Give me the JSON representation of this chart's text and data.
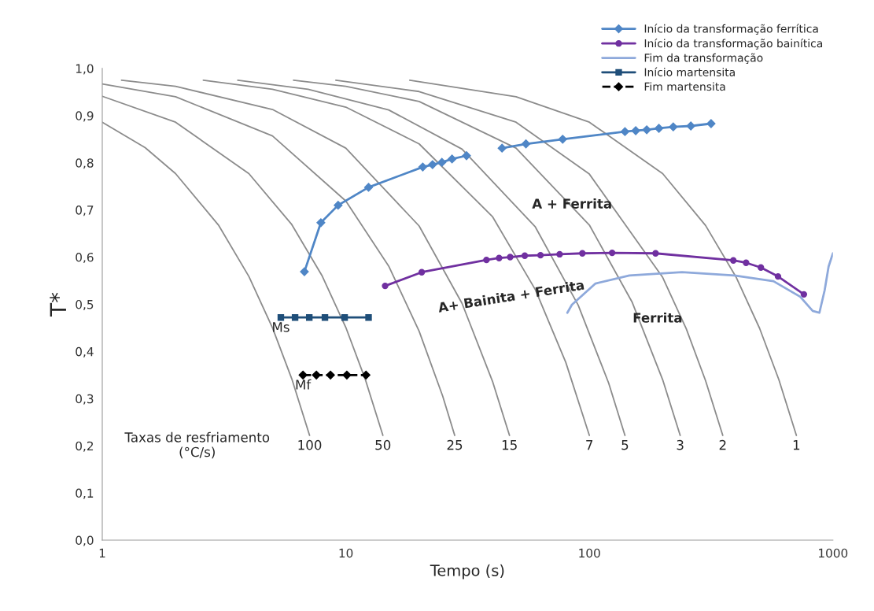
{
  "chart_data": {
    "type": "line",
    "xlabel": "Tempo (s)",
    "ylabel": "T*",
    "xlim": [
      1,
      1000
    ],
    "xticks": [
      1,
      10,
      100,
      1000
    ],
    "log": "x",
    "ylim": [
      0,
      1
    ],
    "yticks": [
      {
        "value": 0,
        "label": "0,0"
      },
      {
        "value": 0.1,
        "label": "0,1"
      },
      {
        "value": 0.2,
        "label": "0,2"
      },
      {
        "value": 0.3,
        "label": "0,3"
      },
      {
        "value": 0.4,
        "label": "0,4"
      },
      {
        "value": 0.5,
        "label": "0,5"
      },
      {
        "value": 0.6,
        "label": "0,6"
      },
      {
        "value": 0.7,
        "label": "0,7"
      },
      {
        "value": 0.8,
        "label": "0,8"
      },
      {
        "value": 0.9,
        "label": "0,9"
      },
      {
        "value": 1,
        "label": "1,0"
      }
    ],
    "grid": false,
    "legend": "top right",
    "series": [
      {
        "color": "#8c8c8c",
        "marker": "none",
        "x": [
          1,
          1.5,
          2,
          3,
          4,
          5,
          6,
          7.1
        ],
        "values": [
          0.886,
          0.832,
          0.777,
          0.668,
          0.559,
          0.45,
          0.342,
          0.222
        ]
      },
      {
        "color": "#8c8c8c",
        "marker": "none",
        "x": [
          1,
          2,
          4,
          6,
          8,
          10,
          12,
          14.2
        ],
        "values": [
          0.941,
          0.886,
          0.777,
          0.669,
          0.56,
          0.451,
          0.342,
          0.222
        ]
      },
      {
        "color": "#8c8c8c",
        "marker": "none",
        "x": [
          1,
          2,
          5,
          10,
          15,
          20,
          25,
          28
        ],
        "values": [
          0.967,
          0.94,
          0.857,
          0.719,
          0.581,
          0.443,
          0.305,
          0.222
        ]
      },
      {
        "color": "#8c8c8c",
        "marker": "none",
        "x": [
          1.2,
          2,
          5,
          10,
          20,
          30,
          40,
          47
        ],
        "values": [
          0.975,
          0.962,
          0.913,
          0.831,
          0.666,
          0.502,
          0.337,
          0.222
        ]
      },
      {
        "color": "#8c8c8c",
        "marker": "none",
        "x": [
          2.6,
          5,
          10,
          20,
          40,
          60,
          80,
          100
        ],
        "values": [
          0.975,
          0.956,
          0.918,
          0.84,
          0.686,
          0.531,
          0.377,
          0.222
        ]
      },
      {
        "color": "#8c8c8c",
        "marker": "none",
        "x": [
          3.6,
          7,
          15,
          30,
          60,
          90,
          120,
          140
        ],
        "values": [
          0.975,
          0.956,
          0.912,
          0.829,
          0.664,
          0.498,
          0.333,
          0.222
        ]
      },
      {
        "color": "#8c8c8c",
        "marker": "none",
        "x": [
          6.1,
          10,
          20,
          50,
          100,
          150,
          200,
          236
        ],
        "values": [
          0.975,
          0.962,
          0.93,
          0.831,
          0.668,
          0.504,
          0.34,
          0.222
        ]
      },
      {
        "color": "#8c8c8c",
        "marker": "none",
        "x": [
          9.1,
          20,
          50,
          100,
          200,
          250,
          300,
          353
        ],
        "values": [
          0.975,
          0.951,
          0.886,
          0.776,
          0.557,
          0.448,
          0.338,
          0.222
        ]
      },
      {
        "color": "#8c8c8c",
        "marker": "none",
        "x": [
          18.3,
          50,
          100,
          200,
          300,
          400,
          500,
          600,
          708
        ],
        "values": [
          0.975,
          0.94,
          0.886,
          0.777,
          0.667,
          0.558,
          0.449,
          0.34,
          0.222
        ]
      },
      {
        "name": "Início da transformação ferrítica",
        "color": "#4f86c6",
        "marker": "diamond",
        "x": [
          6.76,
          7.9,
          9.3,
          12.4,
          20.7,
          22.7,
          24.8,
          27.3,
          31.3,
          40,
          43.8,
          54.9,
          77.7,
          140,
          155,
          172,
          193,
          221,
          261,
          316
        ],
        "values": [
          0.569,
          0.673,
          0.71,
          0.748,
          0.791,
          0.796,
          0.801,
          0.808,
          0.815,
          null,
          0.831,
          0.84,
          0.85,
          0.866,
          0.868,
          0.87,
          0.873,
          0.876,
          0.878,
          0.883
        ]
      },
      {
        "name": "Início da transformação bainítica",
        "color": "#7030a0",
        "marker": "circle",
        "x": [
          14.5,
          20.5,
          37.8,
          42.6,
          47.3,
          54.3,
          63,
          75.5,
          93.6,
          124,
          187,
          390,
          440,
          506,
          595,
          760
        ],
        "values": [
          0.539,
          0.568,
          0.594,
          0.598,
          0.6,
          0.603,
          0.604,
          0.606,
          0.608,
          0.609,
          0.608,
          0.593,
          0.588,
          0.578,
          0.559,
          0.521
        ]
      },
      {
        "name": "Fim da transformação",
        "color": "#8ea9db",
        "marker": "none",
        "x": [
          81.2,
          84.8,
          106,
          146,
          240,
          394,
          570,
          734,
          826,
          880,
          925,
          960,
          1000
        ],
        "values": [
          0.482,
          0.499,
          0.544,
          0.561,
          0.568,
          0.561,
          0.549,
          0.516,
          0.486,
          0.482,
          0.53,
          0.58,
          0.608
        ]
      },
      {
        "name": "Início martensita",
        "color": "#1f4e79",
        "marker": "square",
        "x": [
          5.41,
          6.19,
          7.08,
          8.21,
          9.89,
          12.4
        ],
        "values": [
          0.472,
          0.472,
          0.472,
          0.472,
          0.472,
          0.472
        ]
      },
      {
        "name": "Fim martensita",
        "color": "#000000",
        "marker": "diamond",
        "line_style": "dashed",
        "x": [
          6.67,
          7.57,
          8.65,
          10.1,
          12.1
        ],
        "values": [
          0.35,
          0.35,
          0.35,
          0.35,
          0.35
        ]
      }
    ],
    "annotations": [
      "Taxas de resfriamento\n(°C/s)",
      {
        "text": "100",
        "x": 7.1,
        "y": 0.222
      },
      {
        "text": "50",
        "x": 14.2,
        "y": 0.222
      },
      {
        "text": "25",
        "x": 28,
        "y": 0.222
      },
      {
        "text": "15",
        "x": 47,
        "y": 0.222
      },
      {
        "text": "7",
        "x": 100,
        "y": 0.222
      },
      {
        "text": "5",
        "x": 140,
        "y": 0.222
      },
      {
        "text": "3",
        "x": 236,
        "y": 0.222
      },
      {
        "text": "2",
        "x": 353,
        "y": 0.222
      },
      {
        "text": "1",
        "x": 708,
        "y": 0.222
      },
      {
        "text": "Ms",
        "x": 5.41,
        "y": 0.472
      },
      {
        "text": "Mf",
        "x": 6.67,
        "y": 0.35
      },
      "A + Ferrita",
      "A+ Bainita + Ferrita",
      "Ferrita"
    ]
  }
}
